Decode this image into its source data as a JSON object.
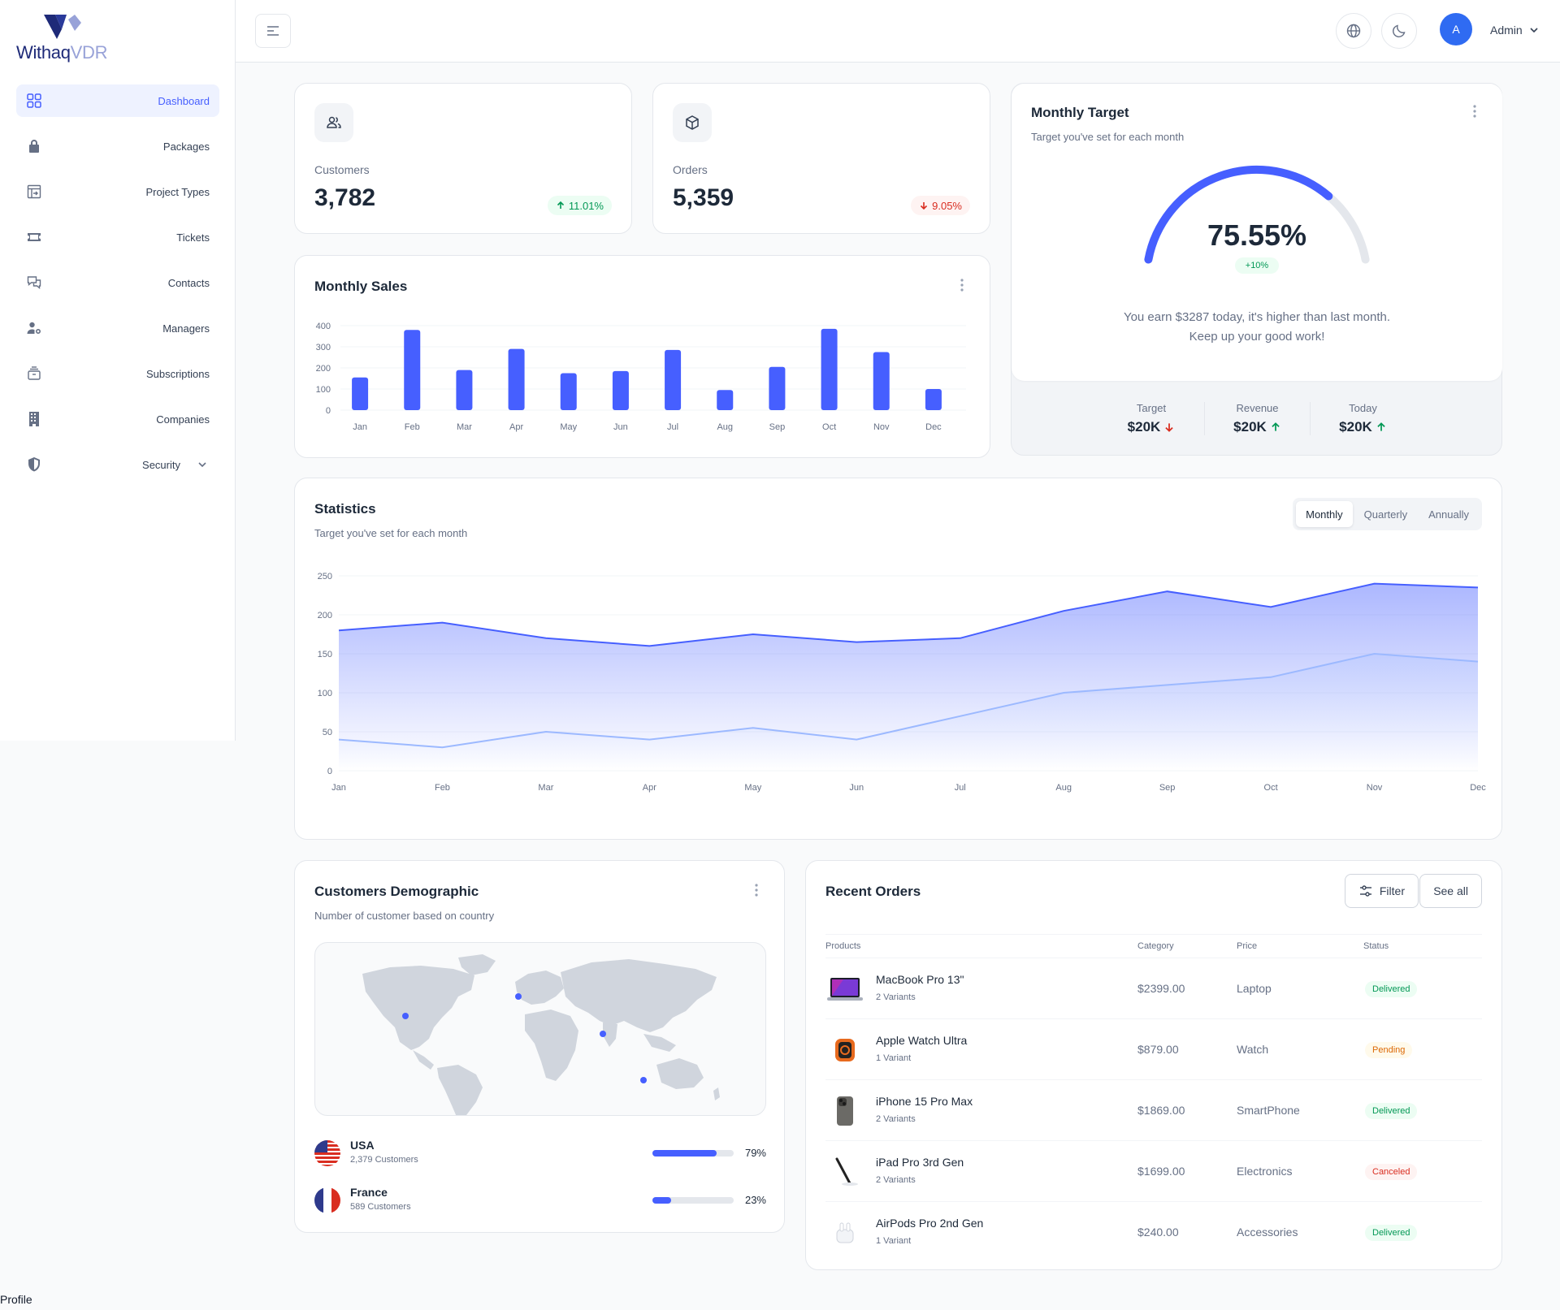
{
  "brand": {
    "name_main": "Withaq",
    "name_suffix": "VDR"
  },
  "sidebar": {
    "items": [
      {
        "label": "Dashboard",
        "icon": "grid-icon",
        "active": true
      },
      {
        "label": "Packages",
        "icon": "lock-icon"
      },
      {
        "label": "Project Types",
        "icon": "project-icon"
      },
      {
        "label": "Tickets",
        "icon": "ticket-icon"
      },
      {
        "label": "Contacts",
        "icon": "chat-icon"
      },
      {
        "label": "Managers",
        "icon": "user-gear-icon"
      },
      {
        "label": "Subscriptions",
        "icon": "stack-icon"
      },
      {
        "label": "Companies",
        "icon": "building-icon"
      },
      {
        "label": "Security",
        "icon": "shield-icon",
        "has_children": true
      }
    ],
    "profile_label": "Profile"
  },
  "header": {
    "avatar_initial": "A",
    "user_name": "Admin"
  },
  "metrics": {
    "customers": {
      "label": "Customers",
      "value": "3,782",
      "change": "11.01%",
      "trend": "up"
    },
    "orders": {
      "label": "Orders",
      "value": "5,359",
      "change": "9.05%",
      "trend": "down"
    }
  },
  "monthly_sales": {
    "title": "Monthly Sales",
    "chart_data": {
      "type": "bar",
      "categories": [
        "Jan",
        "Feb",
        "Mar",
        "Apr",
        "May",
        "Jun",
        "Jul",
        "Aug",
        "Sep",
        "Oct",
        "Nov",
        "Dec"
      ],
      "values": [
        155,
        380,
        190,
        290,
        175,
        185,
        285,
        95,
        205,
        385,
        275,
        100
      ],
      "ylim": [
        0,
        400
      ],
      "yticks": [
        0,
        100,
        200,
        300,
        400
      ],
      "color": "#465fff",
      "grid": true
    }
  },
  "monthly_target": {
    "title": "Monthly Target",
    "subtitle": "Target you've set for each month",
    "percent": 75.55,
    "percent_label": "75.55%",
    "delta": "+10%",
    "message_line1": "You earn $3287 today, it's higher than last month.",
    "message_line2": "Keep up your good work!",
    "stats": [
      {
        "label": "Target",
        "value": "$20K",
        "trend": "down"
      },
      {
        "label": "Revenue",
        "value": "$20K",
        "trend": "up"
      },
      {
        "label": "Today",
        "value": "$20K",
        "trend": "up"
      }
    ]
  },
  "statistics": {
    "title": "Statistics",
    "subtitle": "Target you've set for each month",
    "tabs": [
      "Monthly",
      "Quarterly",
      "Annually"
    ],
    "active_tab": "Monthly",
    "chart_data": {
      "type": "area",
      "x": [
        "Jan",
        "Feb",
        "Mar",
        "Apr",
        "May",
        "Jun",
        "Jul",
        "Aug",
        "Sep",
        "Oct",
        "Nov",
        "Dec"
      ],
      "series": [
        {
          "values": [
            180,
            190,
            170,
            160,
            175,
            165,
            170,
            205,
            230,
            210,
            240,
            235
          ],
          "color": "#465fff"
        },
        {
          "values": [
            40,
            30,
            50,
            40,
            55,
            40,
            70,
            100,
            110,
            120,
            150,
            140
          ],
          "color": "#9cb9ff"
        }
      ],
      "ylim": [
        0,
        250
      ],
      "yticks": [
        0,
        50,
        100,
        150,
        200,
        250
      ],
      "grid": true
    }
  },
  "demographic": {
    "title": "Customers Demographic",
    "subtitle": "Number of customer based on country",
    "countries": [
      {
        "name": "USA",
        "customers": "2,379 Customers",
        "percent": 79,
        "percent_label": "79%"
      },
      {
        "name": "France",
        "customers": "589 Customers",
        "percent": 23,
        "percent_label": "23%"
      }
    ]
  },
  "recent_orders": {
    "title": "Recent Orders",
    "filter_label": "Filter",
    "see_all_label": "See all",
    "columns": [
      "Products",
      "Category",
      "Price",
      "Status"
    ],
    "rows": [
      {
        "name": "MacBook Pro 13\"",
        "variants": "2 Variants",
        "price": "$2399.00",
        "category": "Laptop",
        "status": "Delivered",
        "status_type": "delivered",
        "thumb": "laptop-icon"
      },
      {
        "name": "Apple Watch Ultra",
        "variants": "1 Variant",
        "price": "$879.00",
        "category": "Watch",
        "status": "Pending",
        "status_type": "pending",
        "thumb": "watch-icon"
      },
      {
        "name": "iPhone 15 Pro Max",
        "variants": "2 Variants",
        "price": "$1869.00",
        "category": "SmartPhone",
        "status": "Delivered",
        "status_type": "delivered",
        "thumb": "phone-icon"
      },
      {
        "name": "iPad Pro 3rd Gen",
        "variants": "2 Variants",
        "price": "$1699.00",
        "category": "Electronics",
        "status": "Canceled",
        "status_type": "canceled",
        "thumb": "pencil-icon"
      },
      {
        "name": "AirPods Pro 2nd Gen",
        "variants": "1 Variant",
        "price": "$240.00",
        "category": "Accessories",
        "status": "Delivered",
        "status_type": "delivered",
        "thumb": "airpods-icon"
      }
    ]
  }
}
